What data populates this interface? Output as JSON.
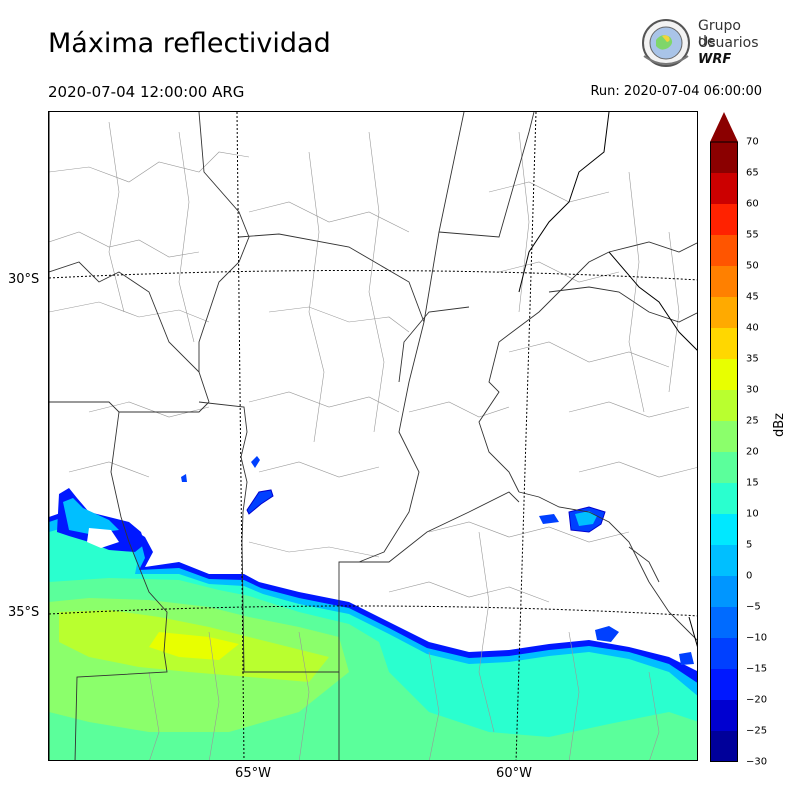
{
  "title": "Máxima reflectividad",
  "valid_time": "2020-07-04 12:00:00 ARG",
  "run_time": "Run: 2020-07-04 06:00:00",
  "logo": {
    "line1": "Grupo de",
    "line2": "Usuarios",
    "line3": "WRF"
  },
  "map": {
    "lat_labels": [
      "30°S",
      "35°S"
    ],
    "lon_labels": [
      "65°W",
      "60°W"
    ]
  },
  "colorbar": {
    "label": "dBz",
    "ticks": [
      "70",
      "65",
      "60",
      "55",
      "50",
      "45",
      "40",
      "35",
      "30",
      "25",
      "20",
      "15",
      "10",
      "5",
      "0",
      "−5",
      "−10",
      "−15",
      "−20",
      "−25",
      "−30"
    ],
    "colors": [
      "#8b0000",
      "#cc0000",
      "#ff2200",
      "#ff5500",
      "#ff8000",
      "#ffaa00",
      "#ffd700",
      "#e8ff00",
      "#b9ff2f",
      "#8bff6b",
      "#5bff9b",
      "#2affcf",
      "#00e8ff",
      "#00bfff",
      "#0096ff",
      "#006bff",
      "#0040ff",
      "#0018ff",
      "#0000d0",
      "#00009a"
    ]
  }
}
